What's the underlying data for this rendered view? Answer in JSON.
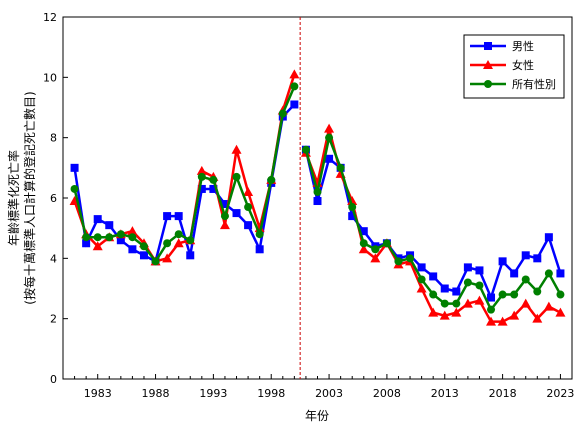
{
  "chart_data": {
    "type": "line",
    "xlabel": "年份",
    "ylabel_line1": "年齡標準化死亡率",
    "ylabel_line2": "(按每十萬標準人口計算的登記死亡數目)",
    "xlim": [
      1980,
      2024
    ],
    "ylim": [
      0,
      12
    ],
    "x_ticks": [
      1983,
      1988,
      1993,
      1998,
      2003,
      2008,
      2013,
      2018,
      2023
    ],
    "y_ticks": [
      0,
      2,
      4,
      6,
      8,
      10,
      12
    ],
    "grid": false,
    "legend_position": "top-right",
    "reference_line": {
      "x": 2000.5,
      "color": "#cc0000",
      "style": "dashed"
    },
    "x_segments": [
      [
        1981,
        1982,
        1983,
        1984,
        1985,
        1986,
        1987,
        1988,
        1989,
        1990,
        1991,
        1992,
        1993,
        1994,
        1995,
        1996,
        1997,
        1998,
        1999,
        2000
      ],
      [
        2001,
        2002,
        2003,
        2004,
        2005,
        2006,
        2007,
        2008,
        2009,
        2010,
        2011,
        2012,
        2013,
        2014,
        2015,
        2016,
        2017,
        2018,
        2019,
        2020,
        2021,
        2022,
        2023
      ]
    ],
    "series": [
      {
        "name": "男性",
        "color": "#0000ff",
        "marker": "square",
        "values": [
          [
            7.0,
            4.5,
            5.3,
            5.1,
            4.6,
            4.3,
            4.1,
            3.9,
            5.4,
            5.4,
            4.1,
            6.3,
            6.3,
            5.8,
            5.5,
            5.1,
            4.3,
            6.5,
            8.7,
            9.1
          ],
          [
            7.6,
            5.9,
            7.3,
            7.0,
            5.4,
            4.9,
            4.4,
            4.5,
            4.0,
            4.1,
            3.7,
            3.4,
            3.0,
            2.9,
            3.7,
            3.6,
            2.7,
            3.9,
            3.5,
            4.1,
            4.0,
            4.7,
            3.5
          ]
        ]
      },
      {
        "name": "女性",
        "color": "#ff0000",
        "marker": "triangle",
        "values": [
          [
            5.9,
            4.8,
            4.4,
            4.7,
            4.8,
            4.9,
            4.5,
            3.9,
            4.0,
            4.5,
            4.6,
            6.9,
            6.7,
            5.1,
            7.6,
            6.2,
            5.0,
            6.6,
            8.9,
            10.1
          ],
          [
            7.5,
            6.5,
            8.3,
            6.8,
            5.9,
            4.3,
            4.0,
            4.5,
            3.8,
            3.9,
            3.0,
            2.2,
            2.1,
            2.2,
            2.5,
            2.6,
            1.9,
            1.9,
            2.1,
            2.5,
            2.0,
            2.4,
            2.2
          ]
        ]
      },
      {
        "name": "所有性別",
        "color": "#008000",
        "marker": "circle",
        "values": [
          [
            6.3,
            4.7,
            4.7,
            4.7,
            4.8,
            4.7,
            4.4,
            3.9,
            4.5,
            4.8,
            4.6,
            6.7,
            6.6,
            5.4,
            6.7,
            5.7,
            4.8,
            6.6,
            8.8,
            9.7
          ],
          [
            7.6,
            6.2,
            8.0,
            7.0,
            5.7,
            4.5,
            4.3,
            4.5,
            3.9,
            4.0,
            3.3,
            2.8,
            2.5,
            2.5,
            3.2,
            3.1,
            2.3,
            2.8,
            2.8,
            3.3,
            2.9,
            3.5,
            2.8
          ]
        ]
      }
    ]
  }
}
